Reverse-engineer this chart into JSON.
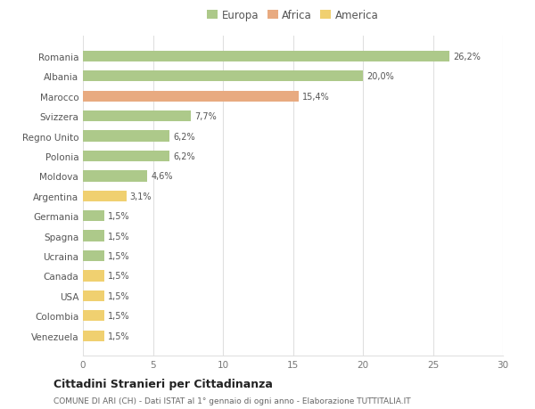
{
  "categories": [
    "Romania",
    "Albania",
    "Marocco",
    "Svizzera",
    "Regno Unito",
    "Polonia",
    "Moldova",
    "Argentina",
    "Germania",
    "Spagna",
    "Ucraina",
    "Canada",
    "USA",
    "Colombia",
    "Venezuela"
  ],
  "values": [
    26.2,
    20.0,
    15.4,
    7.7,
    6.2,
    6.2,
    4.6,
    3.1,
    1.5,
    1.5,
    1.5,
    1.5,
    1.5,
    1.5,
    1.5
  ],
  "labels": [
    "26,2%",
    "20,0%",
    "15,4%",
    "7,7%",
    "6,2%",
    "6,2%",
    "4,6%",
    "3,1%",
    "1,5%",
    "1,5%",
    "1,5%",
    "1,5%",
    "1,5%",
    "1,5%",
    "1,5%"
  ],
  "colors": [
    "#adc98a",
    "#adc98a",
    "#e8aa80",
    "#adc98a",
    "#adc98a",
    "#adc98a",
    "#adc98a",
    "#f0d070",
    "#adc98a",
    "#adc98a",
    "#adc98a",
    "#f0d070",
    "#f0d070",
    "#f0d070",
    "#f0d070"
  ],
  "legend_labels": [
    "Europa",
    "Africa",
    "America"
  ],
  "legend_colors": [
    "#adc98a",
    "#e8aa80",
    "#f0d070"
  ],
  "xlim": [
    0,
    30
  ],
  "xticks": [
    0,
    5,
    10,
    15,
    20,
    25,
    30
  ],
  "title": "Cittadini Stranieri per Cittadinanza",
  "subtitle": "COMUNE DI ARI (CH) - Dati ISTAT al 1° gennaio di ogni anno - Elaborazione TUTTITALIA.IT",
  "background_color": "#ffffff",
  "grid_color": "#e0e0e0",
  "bar_height": 0.55
}
